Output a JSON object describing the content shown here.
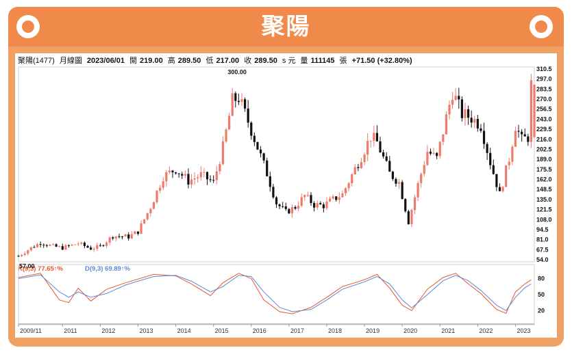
{
  "header": {
    "title": "聚陽"
  },
  "quote": {
    "name": "聚陽(1477)",
    "period": "月線圖",
    "date": "2023/06/01",
    "open_label": "開",
    "open": "219.00",
    "high_label": "高",
    "high": "289.50",
    "low_label": "低",
    "low": "217.00",
    "close_label": "收",
    "close": "289.50",
    "unit": "s 元",
    "volume_label": "量",
    "volume": "111145",
    "volume_unit": "張",
    "change": "+71.50 (+32.80%)"
  },
  "colors": {
    "up": "#f07a6a",
    "down": "#111111",
    "k_line": "#e8552a",
    "d_line": "#5a8ad6",
    "accent": "#f08a4a"
  },
  "chart_data": [
    {
      "type": "candlestick",
      "title": "聚陽(1477) 月線圖",
      "x_ticks": [
        "2009/11",
        "2011",
        "2012",
        "2013",
        "2014",
        "2015",
        "2016",
        "2017",
        "2018",
        "2019",
        "2020",
        "2021",
        "2022",
        "2023"
      ],
      "y_ticks": [
        "310.5",
        "297.0",
        "283.5",
        "270.0",
        "256.5",
        "243.0",
        "229.5",
        "216.0",
        "202.5",
        "189.0",
        "175.5",
        "162.0",
        "148.5",
        "135.0",
        "121.5",
        "108.0",
        "94.5",
        "81.0",
        "67.5",
        "54.0"
      ],
      "ylim": [
        54.0,
        310.5
      ],
      "annotations": [
        {
          "label": "300.00",
          "x": "2015-09",
          "y": 300.0
        },
        {
          "label": "57.00",
          "x": "2009-11",
          "y": 57.0
        }
      ],
      "last_candle": {
        "date": "2023/06/01",
        "open": 219.0,
        "high": 289.5,
        "low": 217.0,
        "close": 289.5
      },
      "series": [
        {
          "name": "close",
          "values": [
            {
              "x": "2009-11",
              "y": 59
            },
            {
              "x": "2010-03",
              "y": 70
            },
            {
              "x": "2010-06",
              "y": 77
            },
            {
              "x": "2010-10",
              "y": 72
            },
            {
              "x": "2011-01",
              "y": 70
            },
            {
              "x": "2011-06",
              "y": 76
            },
            {
              "x": "2011-10",
              "y": 69
            },
            {
              "x": "2012-01",
              "y": 72
            },
            {
              "x": "2012-05",
              "y": 86
            },
            {
              "x": "2012-10",
              "y": 85
            },
            {
              "x": "2013-01",
              "y": 92
            },
            {
              "x": "2013-05",
              "y": 125
            },
            {
              "x": "2013-09",
              "y": 166
            },
            {
              "x": "2014-01",
              "y": 176
            },
            {
              "x": "2014-05",
              "y": 160
            },
            {
              "x": "2014-09",
              "y": 168
            },
            {
              "x": "2015-01",
              "y": 158
            },
            {
              "x": "2015-04",
              "y": 205
            },
            {
              "x": "2015-07",
              "y": 268
            },
            {
              "x": "2015-09",
              "y": 272
            },
            {
              "x": "2015-12",
              "y": 240
            },
            {
              "x": "2016-03",
              "y": 205
            },
            {
              "x": "2016-06",
              "y": 170
            },
            {
              "x": "2016-09",
              "y": 130
            },
            {
              "x": "2016-12",
              "y": 118
            },
            {
              "x": "2017-03",
              "y": 125
            },
            {
              "x": "2017-06",
              "y": 140
            },
            {
              "x": "2017-09",
              "y": 128
            },
            {
              "x": "2017-12",
              "y": 127
            },
            {
              "x": "2018-03",
              "y": 135
            },
            {
              "x": "2018-06",
              "y": 142
            },
            {
              "x": "2018-09",
              "y": 168
            },
            {
              "x": "2018-12",
              "y": 193
            },
            {
              "x": "2019-03",
              "y": 220
            },
            {
              "x": "2019-05",
              "y": 212
            },
            {
              "x": "2019-09",
              "y": 170
            },
            {
              "x": "2019-12",
              "y": 158
            },
            {
              "x": "2020-03",
              "y": 105
            },
            {
              "x": "2020-06",
              "y": 155
            },
            {
              "x": "2020-09",
              "y": 200
            },
            {
              "x": "2020-12",
              "y": 190
            },
            {
              "x": "2021-03",
              "y": 245
            },
            {
              "x": "2021-05",
              "y": 280
            },
            {
              "x": "2021-08",
              "y": 250
            },
            {
              "x": "2021-11",
              "y": 245
            },
            {
              "x": "2022-02",
              "y": 235
            },
            {
              "x": "2022-05",
              "y": 185
            },
            {
              "x": "2022-08",
              "y": 142
            },
            {
              "x": "2022-11",
              "y": 190
            },
            {
              "x": "2023-01",
              "y": 235
            },
            {
              "x": "2023-03",
              "y": 215
            },
            {
              "x": "2023-05",
              "y": 219
            },
            {
              "x": "2023-06",
              "y": 289.5
            }
          ]
        }
      ]
    },
    {
      "type": "line",
      "title": "KD(9,3)",
      "ylim": [
        0,
        100
      ],
      "y_ticks": [
        "80",
        "50",
        "20"
      ],
      "series": [
        {
          "name": "K(9,3) 77.65↑%",
          "values": [
            {
              "x": "2009-11",
              "y": 82
            },
            {
              "x": "2010-06",
              "y": 90
            },
            {
              "x": "2010-12",
              "y": 40
            },
            {
              "x": "2011-03",
              "y": 35
            },
            {
              "x": "2011-06",
              "y": 62
            },
            {
              "x": "2011-10",
              "y": 38
            },
            {
              "x": "2012-03",
              "y": 60
            },
            {
              "x": "2012-09",
              "y": 72
            },
            {
              "x": "2013-06",
              "y": 88
            },
            {
              "x": "2014-01",
              "y": 85
            },
            {
              "x": "2014-06",
              "y": 70
            },
            {
              "x": "2014-12",
              "y": 48
            },
            {
              "x": "2015-04",
              "y": 72
            },
            {
              "x": "2015-09",
              "y": 90
            },
            {
              "x": "2016-01",
              "y": 80
            },
            {
              "x": "2016-05",
              "y": 40
            },
            {
              "x": "2016-10",
              "y": 18
            },
            {
              "x": "2017-02",
              "y": 14
            },
            {
              "x": "2017-08",
              "y": 26
            },
            {
              "x": "2018-01",
              "y": 45
            },
            {
              "x": "2018-06",
              "y": 65
            },
            {
              "x": "2019-01",
              "y": 78
            },
            {
              "x": "2019-05",
              "y": 88
            },
            {
              "x": "2019-09",
              "y": 62
            },
            {
              "x": "2020-01",
              "y": 30
            },
            {
              "x": "2020-04",
              "y": 20
            },
            {
              "x": "2020-09",
              "y": 60
            },
            {
              "x": "2021-02",
              "y": 82
            },
            {
              "x": "2021-06",
              "y": 90
            },
            {
              "x": "2021-10",
              "y": 70
            },
            {
              "x": "2022-02",
              "y": 52
            },
            {
              "x": "2022-07",
              "y": 22
            },
            {
              "x": "2022-10",
              "y": 15
            },
            {
              "x": "2023-01",
              "y": 55
            },
            {
              "x": "2023-04",
              "y": 70
            },
            {
              "x": "2023-06",
              "y": 77.65
            }
          ]
        },
        {
          "name": "D(9,3) 69.89↑%",
          "values": [
            {
              "x": "2009-11",
              "y": 80
            },
            {
              "x": "2010-06",
              "y": 87
            },
            {
              "x": "2010-12",
              "y": 55
            },
            {
              "x": "2011-03",
              "y": 45
            },
            {
              "x": "2011-06",
              "y": 55
            },
            {
              "x": "2011-10",
              "y": 45
            },
            {
              "x": "2012-03",
              "y": 52
            },
            {
              "x": "2012-09",
              "y": 68
            },
            {
              "x": "2013-06",
              "y": 84
            },
            {
              "x": "2014-01",
              "y": 86
            },
            {
              "x": "2014-06",
              "y": 75
            },
            {
              "x": "2014-12",
              "y": 55
            },
            {
              "x": "2015-04",
              "y": 65
            },
            {
              "x": "2015-09",
              "y": 86
            },
            {
              "x": "2016-01",
              "y": 84
            },
            {
              "x": "2016-05",
              "y": 55
            },
            {
              "x": "2016-10",
              "y": 26
            },
            {
              "x": "2017-02",
              "y": 18
            },
            {
              "x": "2017-08",
              "y": 22
            },
            {
              "x": "2018-01",
              "y": 40
            },
            {
              "x": "2018-06",
              "y": 60
            },
            {
              "x": "2019-01",
              "y": 74
            },
            {
              "x": "2019-05",
              "y": 84
            },
            {
              "x": "2019-09",
              "y": 70
            },
            {
              "x": "2020-01",
              "y": 40
            },
            {
              "x": "2020-04",
              "y": 25
            },
            {
              "x": "2020-09",
              "y": 50
            },
            {
              "x": "2021-02",
              "y": 76
            },
            {
              "x": "2021-06",
              "y": 86
            },
            {
              "x": "2021-10",
              "y": 76
            },
            {
              "x": "2022-02",
              "y": 58
            },
            {
              "x": "2022-07",
              "y": 30
            },
            {
              "x": "2022-10",
              "y": 20
            },
            {
              "x": "2023-01",
              "y": 45
            },
            {
              "x": "2023-04",
              "y": 63
            },
            {
              "x": "2023-06",
              "y": 69.89
            }
          ]
        }
      ]
    }
  ]
}
